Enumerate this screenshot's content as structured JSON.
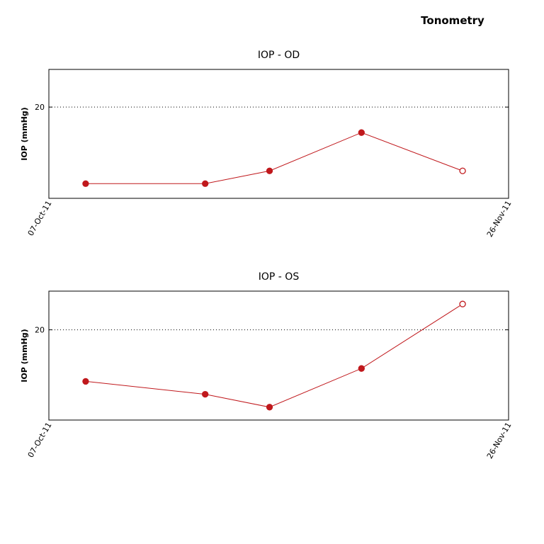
{
  "title": "Tonometry",
  "chart_data": [
    {
      "type": "line",
      "title": "IOP - OD",
      "y_label": "IOP (mmHg)",
      "x": [
        "2011-10-11",
        "2011-10-24",
        "2011-10-31",
        "2011-11-10",
        "2011-11-21"
      ],
      "series": [
        {
          "color": "#c0181c",
          "values": [
            8,
            8,
            10,
            16,
            10
          ],
          "hollow": [
            false,
            false,
            false,
            false,
            true
          ]
        }
      ],
      "xlim": [
        "2011-10-07",
        "2011-11-26"
      ],
      "xticks": [
        {
          "value": "2011-10-07",
          "label": "07-Oct-11"
        },
        {
          "value": "2011-11-26",
          "label": "26-Nov-11"
        }
      ],
      "ylim": [
        5.7,
        25.9
      ],
      "yticks": [
        20
      ],
      "grid": true
    },
    {
      "type": "line",
      "title": "IOP - OS",
      "y_label": "IOP (mmHg)",
      "x": [
        "2011-10-11",
        "2011-10-24",
        "2011-10-31",
        "2011-11-10",
        "2011-11-21"
      ],
      "series": [
        {
          "color": "#c0181c",
          "values": [
            12,
            10,
            8,
            14,
            24
          ],
          "hollow": [
            false,
            false,
            false,
            false,
            true
          ]
        }
      ],
      "xlim": [
        "2011-10-07",
        "2011-11-26"
      ],
      "xticks": [
        {
          "value": "2011-10-07",
          "label": "07-Oct-11"
        },
        {
          "value": "2011-11-26",
          "label": "26-Nov-11"
        }
      ],
      "ylim": [
        6,
        26
      ],
      "yticks": [
        20
      ],
      "grid": true
    }
  ]
}
